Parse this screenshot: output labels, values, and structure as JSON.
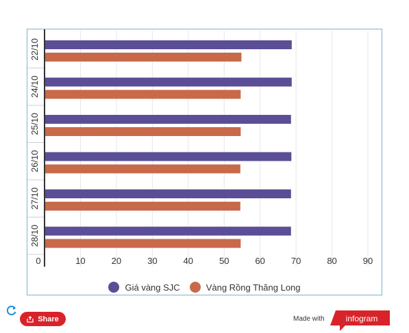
{
  "chart_data": {
    "type": "bar",
    "orientation": "horizontal",
    "categories": [
      "22/10",
      "24/10",
      "25/10",
      "26/10",
      "27/10",
      "28/10"
    ],
    "series": [
      {
        "name": "Giá vàng SJC",
        "color": "#5b4e96",
        "values": [
          68.8,
          68.8,
          68.6,
          68.7,
          68.6,
          68.6
        ]
      },
      {
        "name": "Vàng Rồng Thăng Long",
        "color": "#c8694a",
        "values": [
          54.8,
          54.6,
          54.6,
          54.5,
          54.5,
          54.6
        ]
      }
    ],
    "xlim": [
      0,
      90
    ],
    "ticks": [
      0,
      10,
      20,
      30,
      40,
      50,
      60,
      70,
      80,
      90
    ],
    "grid": true,
    "legend_position": "bottom"
  },
  "footer": {
    "share_label": "Share",
    "made_with": "Made with",
    "brand": "infogram",
    "brand_color": "#d8232a"
  }
}
